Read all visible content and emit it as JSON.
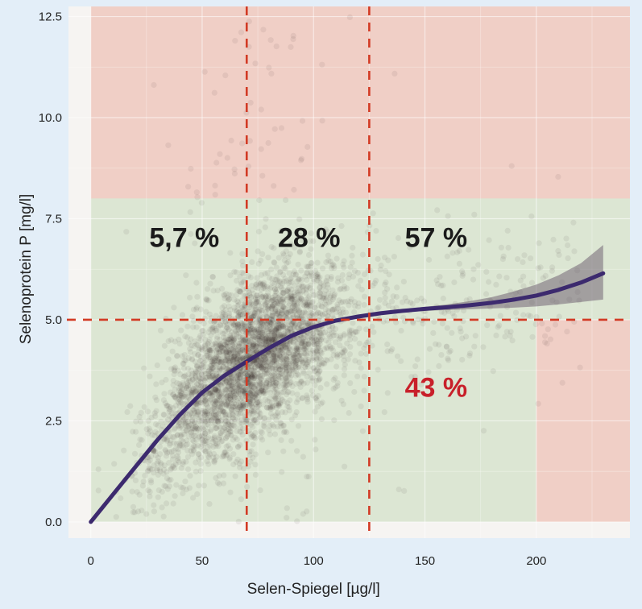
{
  "chart_data": {
    "type": "scatter",
    "title": "",
    "xlabel": "Selen-Spiegel [µg/l]",
    "ylabel": "Selenoprotein P [mg/l]",
    "xlim": [
      -10,
      242
    ],
    "ylim": [
      -0.4,
      12.75
    ],
    "xticks": [
      "0",
      "50",
      "100",
      "150",
      "200"
    ],
    "xtick_values": [
      0,
      50,
      100,
      150,
      200
    ],
    "yticks": [
      "0.0",
      "2.5",
      "5.0",
      "7.5",
      "10.0",
      "12.5"
    ],
    "ytick_values": [
      0,
      2.5,
      5,
      7.5,
      10,
      12.5
    ],
    "grid": true,
    "regions": [
      {
        "kind": "unfavorable",
        "color": "#f0cfc6",
        "x": [
          0,
          242
        ],
        "y": [
          0,
          12.75
        ]
      },
      {
        "kind": "favorable",
        "color": "#dce6d3",
        "x": [
          0,
          200
        ],
        "y": [
          0,
          8
        ]
      },
      {
        "kind": "optimal",
        "color": "#dce6d3",
        "x": [
          0,
          242
        ],
        "y": [
          5,
          8
        ]
      }
    ],
    "thresholds": {
      "x": [
        70,
        125
      ],
      "y": [
        5
      ],
      "color": "#d23a24"
    },
    "percent_labels": [
      {
        "text": "5,7 %",
        "x": 42,
        "y": 6.8,
        "color": "#1a1a1a"
      },
      {
        "text": "28 %",
        "x": 98,
        "y": 6.8,
        "color": "#1a1a1a"
      },
      {
        "text": "57 %",
        "x": 155,
        "y": 6.8,
        "color": "#1a1a1a"
      },
      {
        "text": "43 %",
        "x": 155,
        "y": 3.1,
        "color": "#c8202a"
      }
    ],
    "fit_curve": {
      "color": "#3c2a6e",
      "x": [
        0,
        10,
        20,
        30,
        40,
        50,
        60,
        70,
        80,
        90,
        100,
        110,
        120,
        130,
        140,
        150,
        160,
        170,
        180,
        190,
        200,
        210,
        220,
        230
      ],
      "y": [
        0,
        0.68,
        1.36,
        2.03,
        2.65,
        3.2,
        3.62,
        3.97,
        4.3,
        4.6,
        4.82,
        4.98,
        5.08,
        5.16,
        5.22,
        5.27,
        5.31,
        5.36,
        5.42,
        5.5,
        5.6,
        5.74,
        5.92,
        6.15
      ],
      "ci_lower": [
        0,
        0.66,
        1.34,
        2.01,
        2.63,
        3.18,
        3.6,
        3.95,
        4.28,
        4.58,
        4.8,
        4.96,
        5.06,
        5.13,
        5.18,
        5.22,
        5.24,
        5.26,
        5.28,
        5.3,
        5.33,
        5.38,
        5.44,
        5.5
      ],
      "ci_upper": [
        0,
        0.7,
        1.38,
        2.05,
        2.67,
        3.22,
        3.64,
        3.99,
        4.32,
        4.62,
        4.84,
        5.0,
        5.1,
        5.19,
        5.26,
        5.32,
        5.38,
        5.46,
        5.56,
        5.7,
        5.87,
        6.1,
        6.4,
        6.85
      ]
    },
    "scatter": {
      "color": "#2b1a1a",
      "approx_points": 4000,
      "description_of_cloud": ""
    }
  }
}
